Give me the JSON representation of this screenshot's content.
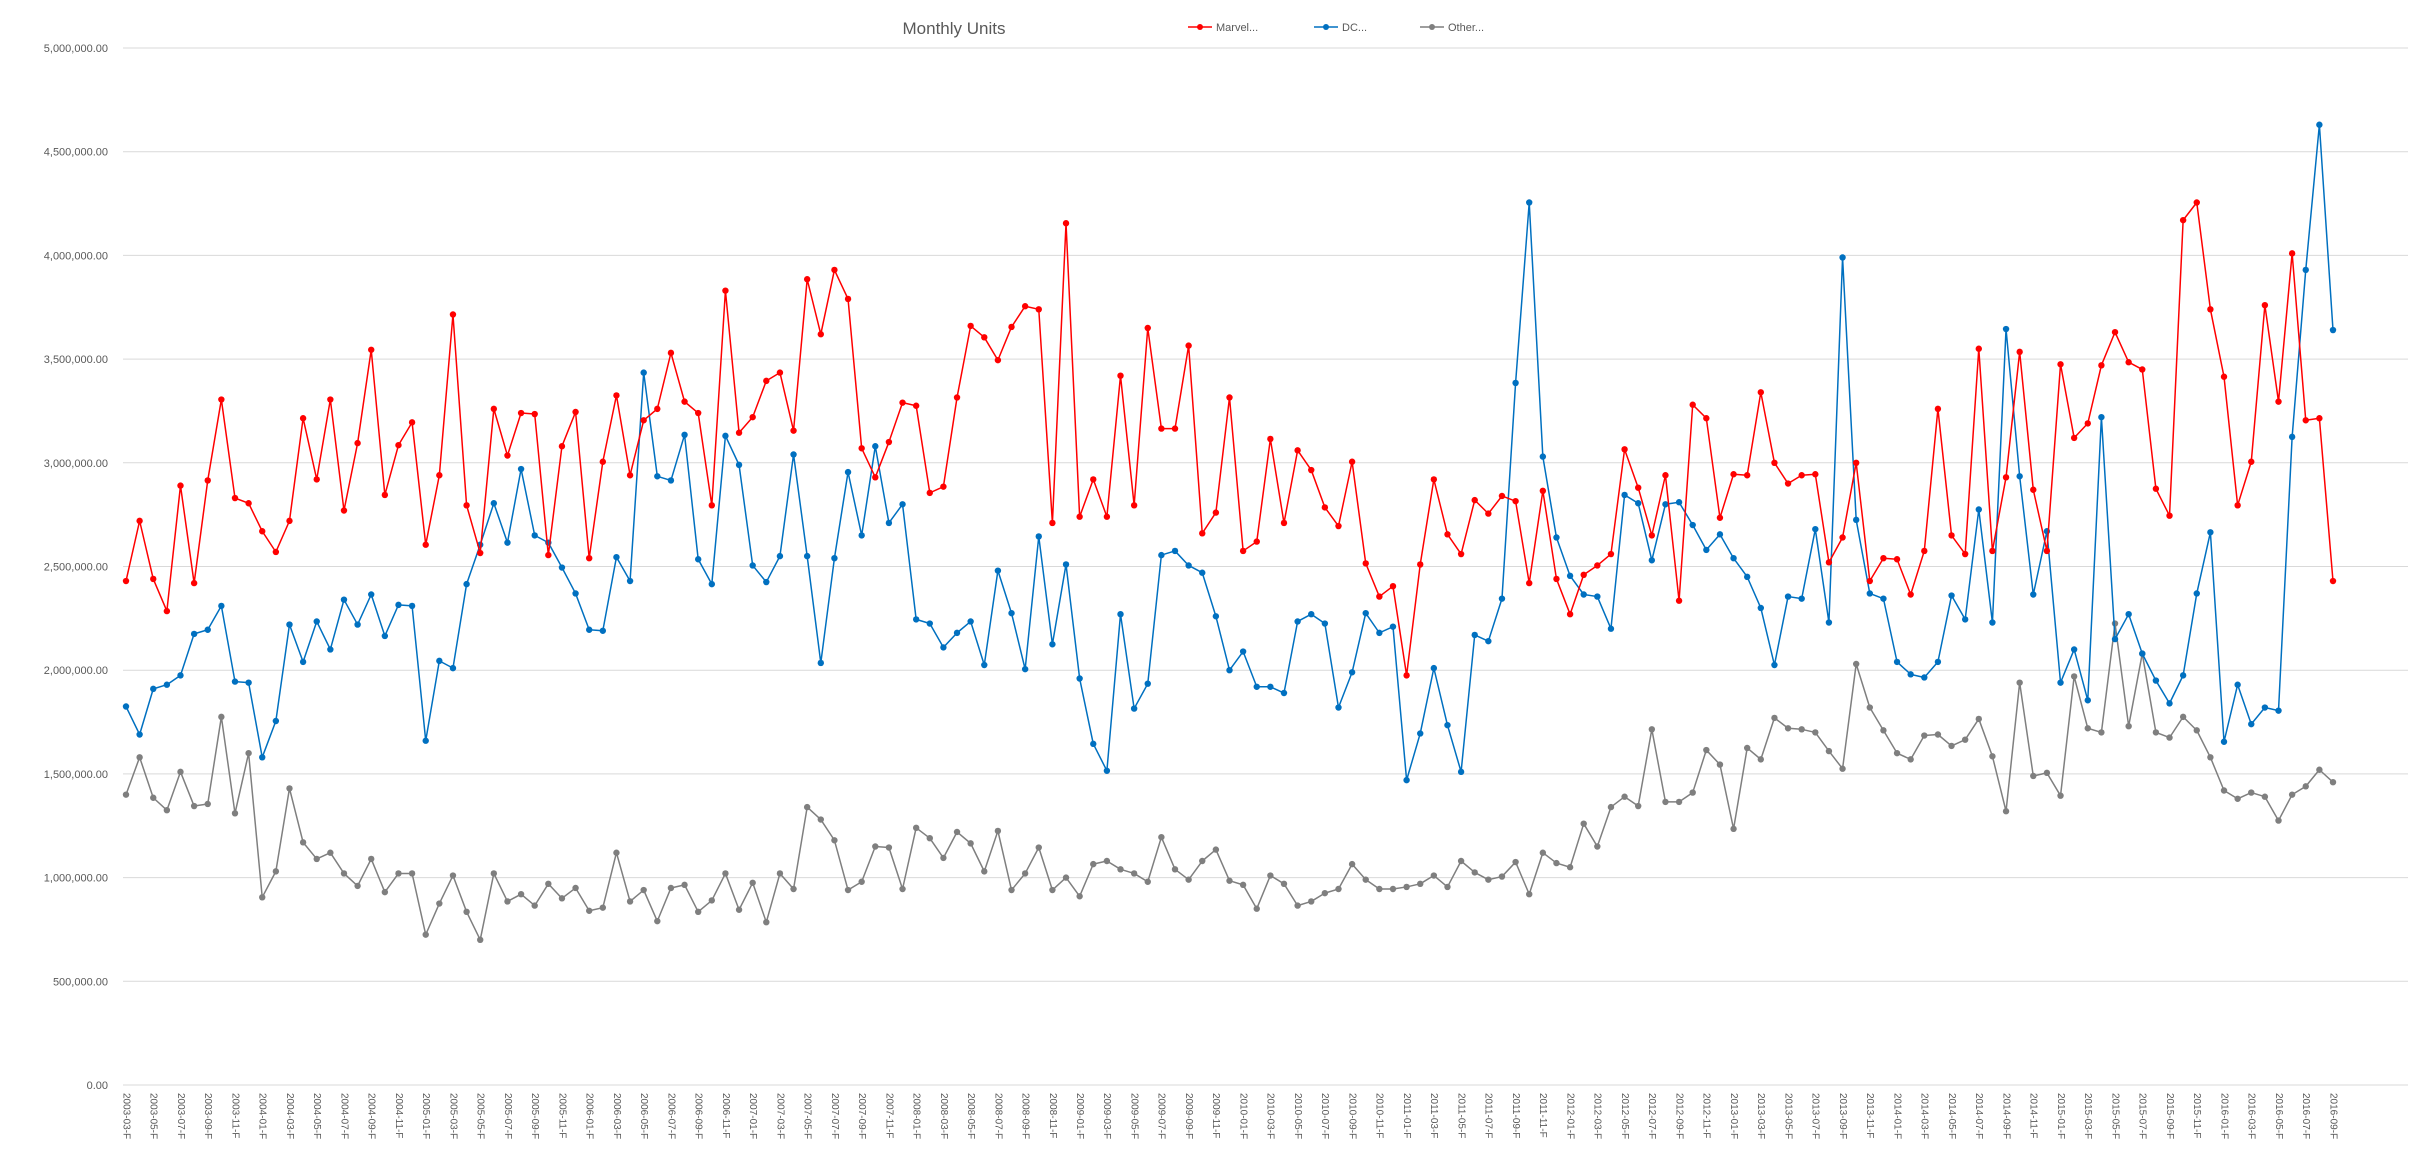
{
  "chart_data": {
    "type": "line",
    "title": "Monthly Units",
    "xlabel": "",
    "ylabel": "",
    "ylim": [
      0,
      5000000
    ],
    "ytick_values": [
      0,
      500000,
      1000000,
      1500000,
      2000000,
      2500000,
      3000000,
      3500000,
      4000000,
      4500000,
      5000000
    ],
    "ytick_labels": [
      "0.00",
      "500,000.00",
      "1,000,000.00",
      "1,500,000.00",
      "2,000,000.00",
      "2,500,000.00",
      "3,000,000.00",
      "3,500,000.00",
      "4,000,000.00",
      "4,500,000.00",
      "5,000,000.00"
    ],
    "grid": true,
    "legend_position": "top",
    "x_start": "2003-03",
    "x_end": "2016-09",
    "x_tick_labels": [
      "2003-03-F",
      "2003-05-F",
      "2003-07-F",
      "2003-09-F",
      "2003-11-F",
      "2004-01-F",
      "2004-03-F",
      "2004-05-F",
      "2004-07-F",
      "2004-09-F",
      "2004-11-F",
      "2005-01-F",
      "2005-03-F",
      "2005-05-F",
      "2005-07-F",
      "2005-09-F",
      "2005-11-F",
      "2006-01-F",
      "2006-03-F",
      "2006-05-F",
      "2006-07-F",
      "2006-09-F",
      "2006-11-F",
      "2007-01-F",
      "2007-03-F",
      "2007-05-F",
      "2007-07-F",
      "2007-09-F",
      "2007-11-F",
      "2008-01-F",
      "2008-03-F",
      "2008-05-F",
      "2008-07-F",
      "2008-09-F",
      "2008-11-F",
      "2009-01-F",
      "2009-03-F",
      "2009-05-F",
      "2009-07-F",
      "2009-09-F",
      "2009-11-F",
      "2010-01-F",
      "2010-03-F",
      "2010-05-F",
      "2010-07-F",
      "2010-09-F",
      "2010-11-F",
      "2011-01-F",
      "2011-03-F",
      "2011-05-F",
      "2011-07-F",
      "2011-09-F",
      "2011-11-F",
      "2012-01-F",
      "2012-03-F",
      "2012-05-F",
      "2012-07-F",
      "2012-09-F",
      "2012-11-F",
      "2013-01-F",
      "2013-03-F",
      "2013-05-F",
      "2013-07-F",
      "2013-09-F",
      "2013-11-F",
      "2014-01-F",
      "2014-03-F",
      "2014-05-F",
      "2014-07-F",
      "2014-09-F",
      "2014-11-F",
      "2015-01-F",
      "2015-03-F",
      "2015-05-F",
      "2015-07-F",
      "2015-09-F",
      "2015-11-F",
      "2016-01-F",
      "2016-03-F",
      "2016-05-F",
      "2016-07-F",
      "2016-09-F"
    ],
    "series": [
      {
        "name": "Marvel...",
        "color": "#ff0000",
        "values": [
          2430000,
          2720000,
          2440000,
          2285000,
          2890000,
          2420000,
          2915000,
          3305000,
          2830000,
          2805000,
          2670000,
          2570000,
          2720000,
          3215000,
          2920000,
          3305000,
          2770000,
          3095000,
          3545000,
          2845000,
          3085000,
          3195000,
          2605000,
          2940000,
          3715000,
          2795000,
          2565000,
          3260000,
          3035000,
          3240000,
          3235000,
          2555000,
          3080000,
          3245000,
          2540000,
          3005000,
          3325000,
          2940000,
          3205000,
          3260000,
          3530000,
          3295000,
          3240000,
          2795000,
          3830000,
          3145000,
          3220000,
          3395000,
          3435000,
          3155000,
          3885000,
          3620000,
          3930000,
          3790000,
          3070000,
          2930000,
          3100000,
          3290000,
          3275000,
          2855000,
          2885000,
          3315000,
          3660000,
          3605000,
          3495000,
          3655000,
          3755000,
          3740000,
          2710000,
          4155000,
          2740000,
          2920000,
          2740000,
          3420000,
          2795000,
          3650000,
          3165000,
          3165000,
          3565000,
          2660000,
          2760000,
          3315000,
          2575000,
          2620000,
          3115000,
          2710000,
          3060000,
          2965000,
          2785000,
          2695000,
          3005000,
          2515000,
          2355000,
          2405000,
          1975000,
          2510000,
          2920000,
          2655000,
          2560000,
          2820000,
          2755000,
          2840000,
          2815000,
          2420000,
          2865000,
          2440000,
          2270000,
          2460000,
          2505000,
          2560000,
          3065000,
          2880000,
          2650000,
          2940000,
          2335000,
          3280000,
          3215000,
          2735000,
          2945000,
          2940000,
          3340000,
          3000000,
          2900000,
          2940000,
          2945000,
          2520000,
          2640000,
          3000000,
          2430000,
          2540000,
          2535000,
          2365000,
          2575000,
          3260000,
          2650000,
          2560000,
          3550000,
          2575000,
          2930000,
          3535000,
          2870000,
          2575000,
          3475000,
          3120000,
          3190000,
          3470000,
          3630000,
          3485000,
          3450000,
          2875000,
          2745000,
          4170000,
          4255000,
          3740000,
          3415000,
          2795000,
          3005000,
          3760000,
          3295000,
          4010000,
          3205000,
          3215000,
          2430000
        ]
      },
      {
        "name": "DC...",
        "color": "#0070c0",
        "values": [
          1825000,
          1690000,
          1910000,
          1930000,
          1975000,
          2175000,
          2195000,
          2310000,
          1945000,
          1940000,
          1580000,
          1755000,
          2220000,
          2040000,
          2235000,
          2100000,
          2340000,
          2220000,
          2365000,
          2165000,
          2315000,
          2310000,
          1660000,
          2045000,
          2010000,
          2415000,
          2605000,
          2805000,
          2615000,
          2970000,
          2650000,
          2615000,
          2495000,
          2370000,
          2195000,
          2190000,
          2545000,
          2430000,
          3435000,
          2935000,
          2915000,
          3135000,
          2535000,
          2415000,
          3130000,
          2990000,
          2505000,
          2425000,
          2550000,
          3040000,
          2550000,
          2035000,
          2540000,
          2955000,
          2650000,
          3080000,
          2710000,
          2800000,
          2245000,
          2225000,
          2110000,
          2180000,
          2235000,
          2025000,
          2480000,
          2275000,
          2005000,
          2645000,
          2125000,
          2510000,
          1960000,
          1645000,
          1515000,
          2270000,
          1815000,
          1935000,
          2555000,
          2575000,
          2505000,
          2470000,
          2260000,
          2000000,
          2090000,
          1920000,
          1920000,
          1890000,
          2235000,
          2270000,
          2225000,
          1820000,
          1990000,
          2275000,
          2180000,
          2210000,
          1470000,
          1695000,
          2010000,
          1735000,
          1510000,
          2170000,
          2140000,
          2345000,
          3385000,
          4255000,
          3030000,
          2640000,
          2455000,
          2365000,
          2355000,
          2200000,
          2845000,
          2805000,
          2530000,
          2800000,
          2810000,
          2700000,
          2580000,
          2655000,
          2540000,
          2450000,
          2300000,
          2025000,
          2355000,
          2345000,
          2680000,
          2230000,
          3990000,
          2725000,
          2370000,
          2345000,
          2040000,
          1980000,
          1965000,
          2040000,
          2360000,
          2245000,
          2775000,
          2230000,
          3645000,
          2935000,
          2365000,
          2670000,
          1940000,
          2100000,
          1855000,
          3220000,
          2150000,
          2270000,
          2080000,
          1950000,
          1840000,
          1975000,
          2370000,
          2665000,
          1655000,
          1930000,
          1740000,
          1820000,
          1805000,
          3125000,
          3930000,
          4630000,
          3640000
        ]
      },
      {
        "name": "Other...",
        "color": "#7f7f7f",
        "values": [
          1400000,
          1580000,
          1385000,
          1325000,
          1510000,
          1345000,
          1355000,
          1775000,
          1310000,
          1600000,
          905000,
          1030000,
          1430000,
          1170000,
          1090000,
          1120000,
          1020000,
          960000,
          1090000,
          930000,
          1020000,
          1020000,
          725000,
          875000,
          1010000,
          835000,
          700000,
          1020000,
          885000,
          920000,
          865000,
          970000,
          900000,
          950000,
          840000,
          855000,
          1120000,
          885000,
          940000,
          790000,
          950000,
          965000,
          835000,
          890000,
          1020000,
          845000,
          975000,
          785000,
          1020000,
          945000,
          1340000,
          1280000,
          1180000,
          940000,
          980000,
          1150000,
          1145000,
          945000,
          1240000,
          1190000,
          1095000,
          1220000,
          1165000,
          1030000,
          1225000,
          940000,
          1020000,
          1145000,
          940000,
          1000000,
          910000,
          1065000,
          1080000,
          1040000,
          1020000,
          980000,
          1195000,
          1040000,
          990000,
          1080000,
          1135000,
          985000,
          965000,
          850000,
          1010000,
          970000,
          865000,
          885000,
          925000,
          945000,
          1065000,
          990000,
          945000,
          945000,
          955000,
          970000,
          1010000,
          955000,
          1080000,
          1025000,
          990000,
          1005000,
          1075000,
          920000,
          1120000,
          1070000,
          1050000,
          1260000,
          1150000,
          1340000,
          1390000,
          1345000,
          1715000,
          1365000,
          1365000,
          1410000,
          1615000,
          1545000,
          1235000,
          1625000,
          1570000,
          1770000,
          1720000,
          1715000,
          1700000,
          1610000,
          1525000,
          2030000,
          1820000,
          1710000,
          1600000,
          1570000,
          1685000,
          1690000,
          1635000,
          1665000,
          1765000,
          1585000,
          1320000,
          1940000,
          1490000,
          1505000,
          1395000,
          1970000,
          1720000,
          1700000,
          2225000,
          1730000,
          2080000,
          1700000,
          1675000,
          1775000,
          1710000,
          1580000,
          1420000,
          1380000,
          1410000,
          1390000,
          1275000,
          1400000,
          1440000,
          1520000,
          1460000
        ]
      }
    ]
  }
}
